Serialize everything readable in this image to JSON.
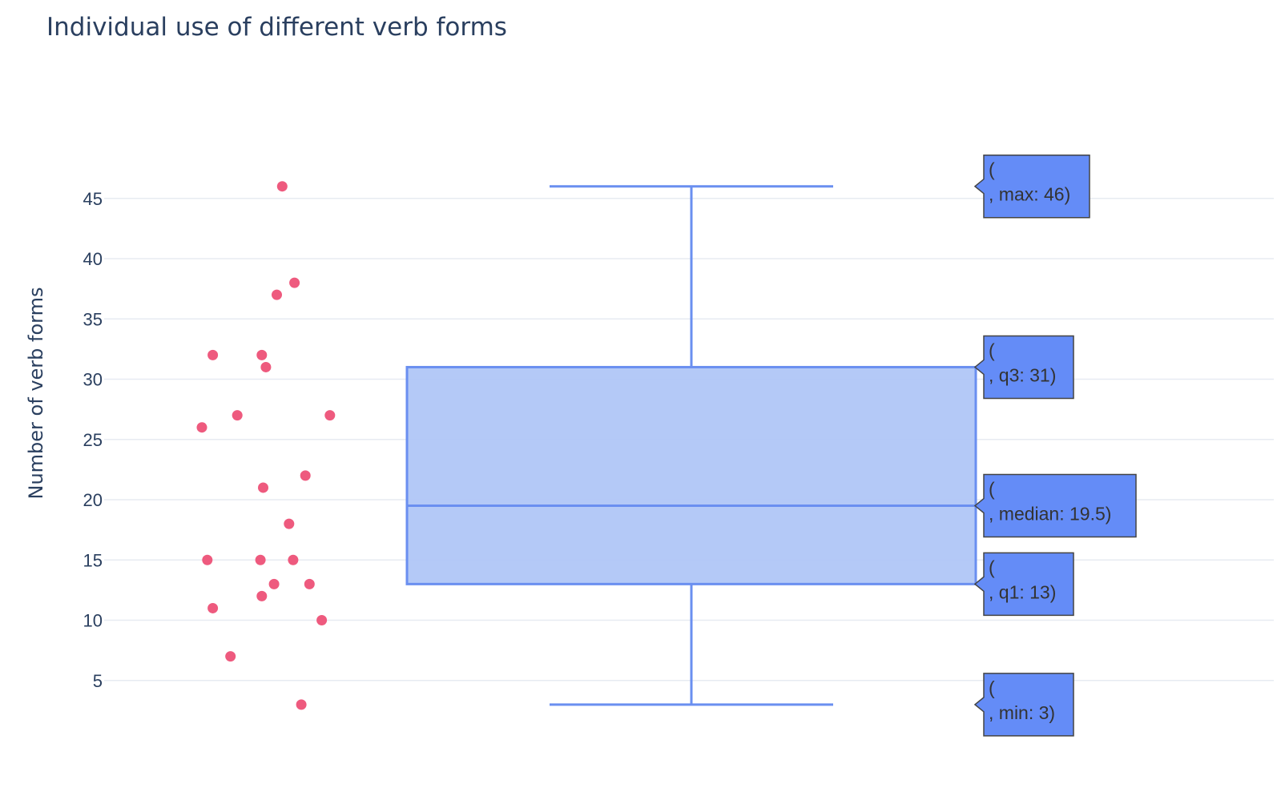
{
  "chart_data": {
    "type": "box",
    "title": "Individual use of different verb forms",
    "xlabel": "",
    "ylabel": "Number of verb forms",
    "ylim": [
      0,
      48
    ],
    "yticks": [
      5,
      10,
      15,
      20,
      25,
      30,
      35,
      40,
      45
    ],
    "grid": true,
    "colors": {
      "box_line": "#6a8ff0",
      "box_fill": "#b0c6f7",
      "points": "#ee5a7e",
      "hover_fill": "#648cf7",
      "hover_border": "#444444",
      "text": "#2a3f5f",
      "grid": "#e7ebf2"
    },
    "points": [
      {
        "x": 0.29,
        "y": 46
      },
      {
        "x": 0.38,
        "y": 38
      },
      {
        "x": 0.25,
        "y": 37
      },
      {
        "x": -0.22,
        "y": 32
      },
      {
        "x": 0.14,
        "y": 32
      },
      {
        "x": 0.17,
        "y": 31
      },
      {
        "x": -0.3,
        "y": 26
      },
      {
        "x": -0.04,
        "y": 27
      },
      {
        "x": 0.64,
        "y": 27
      },
      {
        "x": 0.46,
        "y": 22
      },
      {
        "x": 0.15,
        "y": 21
      },
      {
        "x": 0.34,
        "y": 18
      },
      {
        "x": -0.26,
        "y": 15
      },
      {
        "x": 0.13,
        "y": 15
      },
      {
        "x": 0.37,
        "y": 15
      },
      {
        "x": 0.23,
        "y": 13
      },
      {
        "x": 0.49,
        "y": 13
      },
      {
        "x": -0.22,
        "y": 11
      },
      {
        "x": 0.14,
        "y": 12
      },
      {
        "x": 0.58,
        "y": 10
      },
      {
        "x": -0.09,
        "y": 7
      },
      {
        "x": 0.43,
        "y": 3
      }
    ],
    "box": {
      "min": 3,
      "q1": 13,
      "median": 19.5,
      "q3": 31,
      "max": 46
    },
    "hover_labels": [
      {
        "stat": "max",
        "line1": "(",
        "line2": ", max: 46)"
      },
      {
        "stat": "q3",
        "line1": "(",
        "line2": ", q3: 31)"
      },
      {
        "stat": "median",
        "line1": "(",
        "line2": ", median: 19.5)"
      },
      {
        "stat": "q1",
        "line1": "(",
        "line2": ", q1: 13)"
      },
      {
        "stat": "min",
        "line1": "(",
        "line2": ", min: 3)"
      }
    ]
  }
}
